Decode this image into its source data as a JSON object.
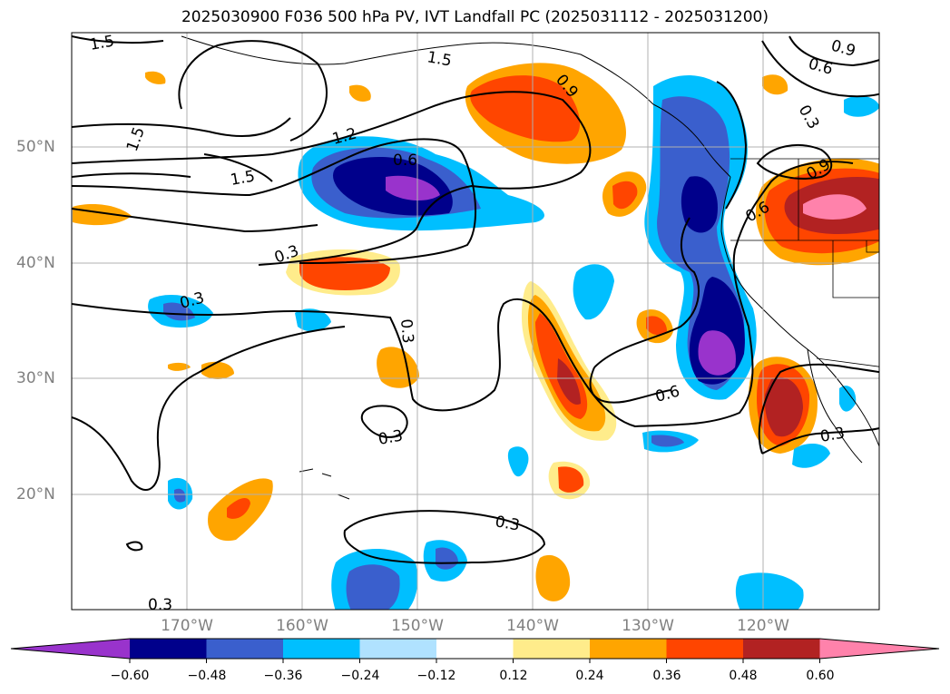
{
  "title": "2025030900 F036 500 hPa PV, IVT Landfall PC (2025031112 - 2025031200)",
  "lat_labels": [
    "50°N",
    "40°N",
    "30°N",
    "20°N"
  ],
  "lon_labels": [
    "170°W",
    "160°W",
    "150°W",
    "140°W",
    "130°W",
    "120°W"
  ],
  "contour_labels": [
    "1.5",
    "1.5",
    "1.5",
    "1.5",
    "1.2",
    "0.6",
    "0.9",
    "0.9",
    "0.6",
    "0.3",
    "0.9",
    "0.6",
    "0.3",
    "0.3",
    "0.3",
    "0.3",
    "0.6",
    "0.3",
    "0.3",
    "0.3"
  ],
  "colorbar": {
    "colors": [
      "#9933cc",
      "#00008b",
      "#3a5fcd",
      "#00bfff",
      "#b0e2ff",
      "#ffffff",
      "#ffec8b",
      "#ffa500",
      "#ff4500",
      "#b22222",
      "#ff82ab"
    ],
    "ticks": [
      "−0.60",
      "−0.48",
      "−0.36",
      "−0.24",
      "−0.12",
      "0.12",
      "0.24",
      "0.36",
      "0.48",
      "0.60"
    ]
  }
}
